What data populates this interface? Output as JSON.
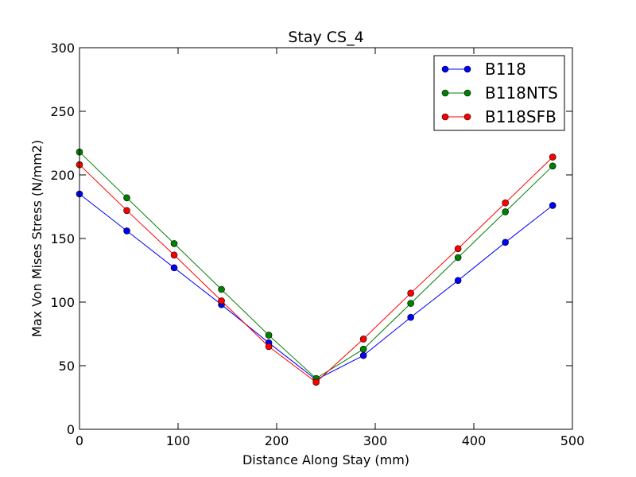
{
  "chart_data": {
    "type": "line",
    "title": "Stay CS_4",
    "xlabel": "Distance Along Stay (mm)",
    "ylabel": "Max Von Mises Stress (N/mm2)",
    "xlim": [
      0,
      500
    ],
    "ylim": [
      0,
      300
    ],
    "xticks": [
      0,
      100,
      200,
      300,
      400,
      500
    ],
    "yticks": [
      0,
      50,
      100,
      150,
      200,
      250,
      300
    ],
    "grid": false,
    "legend_position": "top-right",
    "x": [
      0,
      48,
      96,
      144,
      192,
      240,
      288,
      336,
      384,
      432,
      480
    ],
    "series": [
      {
        "name": "B118",
        "color": "#0000ff",
        "values": [
          185,
          156,
          127,
          98,
          68,
          39,
          58,
          88,
          117,
          147,
          176
        ]
      },
      {
        "name": "B118NTS",
        "color": "#008000",
        "values": [
          218,
          182,
          146,
          110,
          74,
          40,
          63,
          99,
          135,
          171,
          207
        ]
      },
      {
        "name": "B118SFB",
        "color": "#ff0000",
        "values": [
          208,
          172,
          137,
          101,
          65,
          37,
          71,
          107,
          142,
          178,
          214
        ]
      }
    ]
  }
}
